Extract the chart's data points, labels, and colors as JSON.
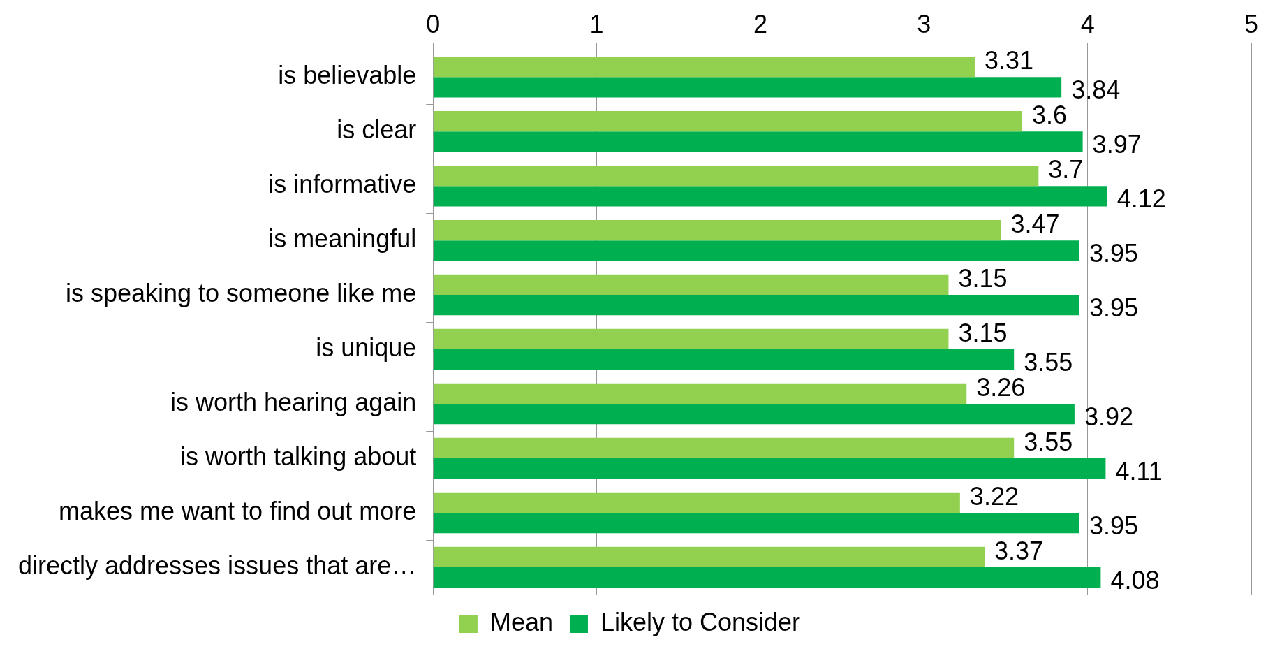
{
  "chart_data": {
    "type": "bar",
    "orientation": "horizontal",
    "categories": [
      "is believable",
      "is clear",
      "is informative",
      "is meaningful",
      "is speaking to someone like me",
      "is unique",
      "is worth hearing again",
      "is worth talking about",
      "makes me want to find out more",
      "directly addresses issues that are…"
    ],
    "series": [
      {
        "name": "Mean",
        "color": "#92d050",
        "values": [
          3.31,
          3.6,
          3.7,
          3.47,
          3.15,
          3.15,
          3.26,
          3.55,
          3.22,
          3.37
        ]
      },
      {
        "name": "Likely to Consider",
        "color": "#00b050",
        "values": [
          3.84,
          3.97,
          4.12,
          3.95,
          3.95,
          3.55,
          3.92,
          4.11,
          3.95,
          4.08
        ]
      }
    ],
    "xlim": [
      0,
      5
    ],
    "xticks": [
      0,
      1,
      2,
      3,
      4,
      5
    ],
    "grid": "x",
    "legend": "bottom",
    "data_labels": true
  }
}
